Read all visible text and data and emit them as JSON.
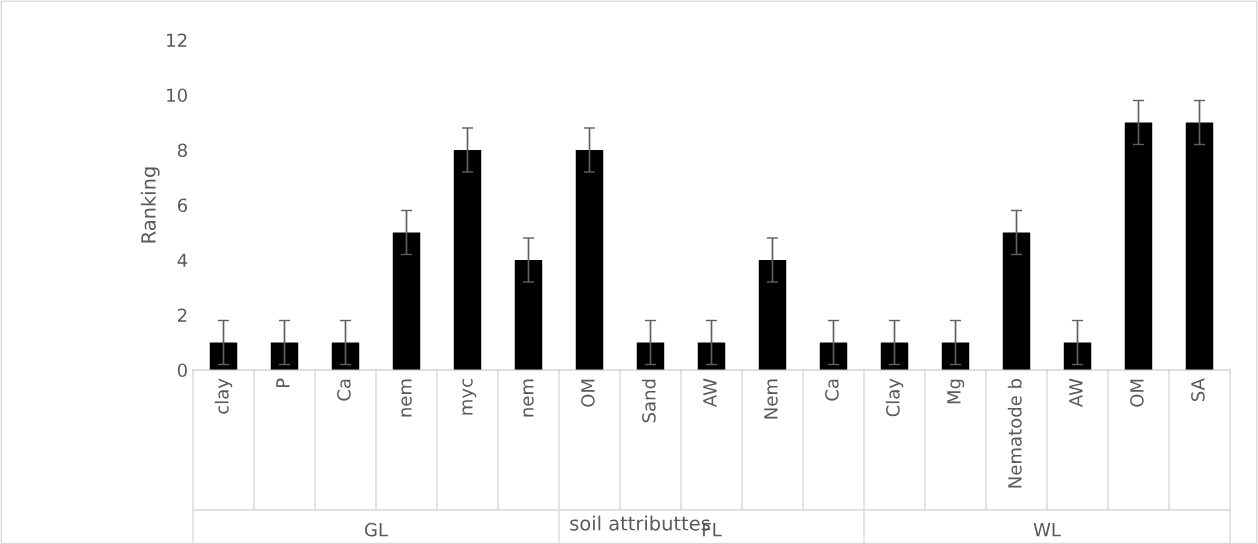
{
  "chart_data": {
    "type": "bar",
    "xlabel": "soil attributtes",
    "ylabel": "Ranking",
    "categories": [
      "clay",
      "P",
      "Ca",
      "nem",
      "myc",
      "nem",
      "OM",
      "Sand",
      "AW",
      "Nem",
      "Ca",
      "Clay",
      "Mg",
      "Nematode b",
      "AW",
      "OM",
      "SA"
    ],
    "values": [
      1,
      1,
      1,
      5,
      8,
      4,
      8,
      1,
      1,
      4,
      1,
      1,
      1,
      5,
      1,
      9,
      9
    ],
    "errors": [
      0.8,
      0.8,
      0.8,
      0.8,
      0.8,
      0.8,
      0.8,
      0.8,
      0.8,
      0.8,
      0.8,
      0.8,
      0.8,
      0.8,
      0.8,
      0.8,
      0.8
    ],
    "color": "#000000",
    "ylim": [
      0,
      12
    ],
    "yticks": [
      0,
      2,
      4,
      6,
      8,
      10,
      12
    ],
    "grid": false,
    "legend": false,
    "annotations": [
      "GL",
      "FL",
      "WL"
    ]
  }
}
